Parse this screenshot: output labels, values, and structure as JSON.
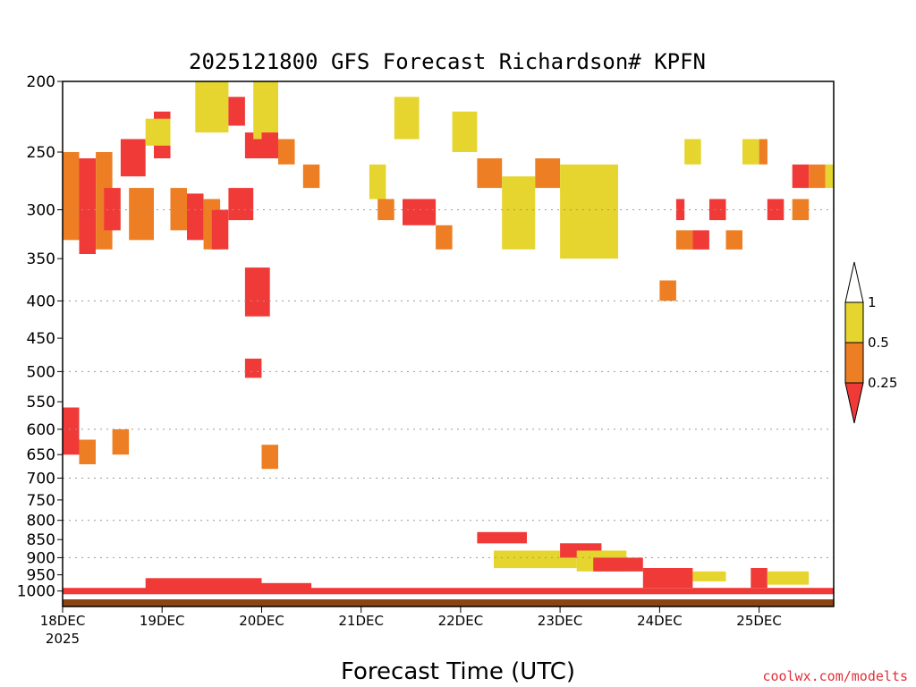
{
  "chart_data": {
    "type": "heatmap",
    "title": "2025121800 GFS Forecast Richardson# KPFN",
    "xlabel": "Forecast Time (UTC)",
    "ylabel": "",
    "credit": "coolwx.com/modelts",
    "x_ticks": [
      "18DEC",
      "19DEC",
      "20DEC",
      "21DEC",
      "22DEC",
      "23DEC",
      "24DEC",
      "25DEC"
    ],
    "x_year": "2025",
    "x_range_hours": [
      0,
      186
    ],
    "y_ticks": [
      200,
      250,
      300,
      350,
      400,
      450,
      500,
      550,
      600,
      650,
      700,
      750,
      800,
      850,
      900,
      950,
      1000
    ],
    "y_gridlines": [
      300,
      400,
      500,
      600,
      700,
      800,
      900
    ],
    "y_range": [
      200,
      1050
    ],
    "y_scale": "pressure (hPa), decreasing upward",
    "grid": true,
    "legend": {
      "position": "right",
      "labels": [
        "1",
        "0.5",
        "0.25"
      ],
      "bins": [
        {
          "range": ">1",
          "color": "#ffffff"
        },
        {
          "range": "0.5-1",
          "color": "#e5d52e"
        },
        {
          "range": "0.25-0.5",
          "color": "#ed7e24"
        },
        {
          "range": "<0.25",
          "color": "#f03a38"
        }
      ]
    },
    "colors": {
      "yellow": "#e5d52e",
      "orange": "#ed7e24",
      "red": "#f03a38",
      "ground": "#8b4513"
    },
    "cells_note": "time_h / pressure_hPa extents of shaded regions (approximate)",
    "cells": [
      {
        "t": [
          0,
          4
        ],
        "p": [
          250,
          330
        ],
        "c": "orange"
      },
      {
        "t": [
          4,
          8
        ],
        "p": [
          255,
          345
        ],
        "c": "red"
      },
      {
        "t": [
          8,
          12
        ],
        "p": [
          250,
          340
        ],
        "c": "orange"
      },
      {
        "t": [
          10,
          14
        ],
        "p": [
          280,
          320
        ],
        "c": "red"
      },
      {
        "t": [
          0,
          4
        ],
        "p": [
          560,
          650
        ],
        "c": "red"
      },
      {
        "t": [
          4,
          8
        ],
        "p": [
          620,
          670
        ],
        "c": "orange"
      },
      {
        "t": [
          12,
          16
        ],
        "p": [
          600,
          650
        ],
        "c": "orange"
      },
      {
        "t": [
          14,
          20
        ],
        "p": [
          240,
          270
        ],
        "c": "red"
      },
      {
        "t": [
          16,
          22
        ],
        "p": [
          280,
          330
        ],
        "c": "orange"
      },
      {
        "t": [
          22,
          26
        ],
        "p": [
          220,
          255
        ],
        "c": "red"
      },
      {
        "t": [
          20,
          26
        ],
        "p": [
          225,
          245
        ],
        "c": "yellow"
      },
      {
        "t": [
          26,
          30
        ],
        "p": [
          280,
          320
        ],
        "c": "orange"
      },
      {
        "t": [
          30,
          34
        ],
        "p": [
          285,
          330
        ],
        "c": "red"
      },
      {
        "t": [
          34,
          38
        ],
        "p": [
          290,
          340
        ],
        "c": "orange"
      },
      {
        "t": [
          36,
          40
        ],
        "p": [
          300,
          340
        ],
        "c": "red"
      },
      {
        "t": [
          32,
          40
        ],
        "p": [
          200,
          235
        ],
        "c": "yellow"
      },
      {
        "t": [
          40,
          44
        ],
        "p": [
          210,
          230
        ],
        "c": "red"
      },
      {
        "t": [
          44,
          50
        ],
        "p": [
          235,
          255
        ],
        "c": "red"
      },
      {
        "t": [
          40,
          46
        ],
        "p": [
          280,
          310
        ],
        "c": "red"
      },
      {
        "t": [
          46,
          52
        ],
        "p": [
          200,
          240
        ],
        "c": "yellow"
      },
      {
        "t": [
          48,
          52
        ],
        "p": [
          235,
          255
        ],
        "c": "red"
      },
      {
        "t": [
          52,
          56
        ],
        "p": [
          240,
          260
        ],
        "c": "orange"
      },
      {
        "t": [
          44,
          48
        ],
        "p": [
          480,
          510
        ],
        "c": "red"
      },
      {
        "t": [
          44,
          50
        ],
        "p": [
          360,
          420
        ],
        "c": "red"
      },
      {
        "t": [
          48,
          52
        ],
        "p": [
          630,
          680
        ],
        "c": "orange"
      },
      {
        "t": [
          58,
          62
        ],
        "p": [
          260,
          280
        ],
        "c": "orange"
      },
      {
        "t": [
          74,
          78
        ],
        "p": [
          260,
          290
        ],
        "c": "yellow"
      },
      {
        "t": [
          76,
          80
        ],
        "p": [
          290,
          310
        ],
        "c": "orange"
      },
      {
        "t": [
          80,
          86
        ],
        "p": [
          210,
          240
        ],
        "c": "yellow"
      },
      {
        "t": [
          82,
          90
        ],
        "p": [
          290,
          315
        ],
        "c": "red"
      },
      {
        "t": [
          90,
          94
        ],
        "p": [
          315,
          340
        ],
        "c": "orange"
      },
      {
        "t": [
          94,
          100
        ],
        "p": [
          220,
          250
        ],
        "c": "yellow"
      },
      {
        "t": [
          100,
          106
        ],
        "p": [
          255,
          280
        ],
        "c": "orange"
      },
      {
        "t": [
          106,
          114
        ],
        "p": [
          270,
          340
        ],
        "c": "yellow"
      },
      {
        "t": [
          114,
          120
        ],
        "p": [
          255,
          280
        ],
        "c": "orange"
      },
      {
        "t": [
          120,
          134
        ],
        "p": [
          260,
          350
        ],
        "c": "yellow"
      },
      {
        "t": [
          144,
          148
        ],
        "p": [
          375,
          400
        ],
        "c": "orange"
      },
      {
        "t": [
          148,
          150
        ],
        "p": [
          290,
          310
        ],
        "c": "red"
      },
      {
        "t": [
          156,
          160
        ],
        "p": [
          290,
          310
        ],
        "c": "red"
      },
      {
        "t": [
          150,
          154
        ],
        "p": [
          240,
          260
        ],
        "c": "yellow"
      },
      {
        "t": [
          164,
          168
        ],
        "p": [
          240,
          260
        ],
        "c": "yellow"
      },
      {
        "t": [
          168,
          170
        ],
        "p": [
          240,
          260
        ],
        "c": "orange"
      },
      {
        "t": [
          170,
          174
        ],
        "p": [
          290,
          310
        ],
        "c": "red"
      },
      {
        "t": [
          176,
          180
        ],
        "p": [
          260,
          280
        ],
        "c": "red"
      },
      {
        "t": [
          180,
          184
        ],
        "p": [
          260,
          280
        ],
        "c": "orange"
      },
      {
        "t": [
          184,
          186
        ],
        "p": [
          260,
          280
        ],
        "c": "yellow"
      },
      {
        "t": [
          176,
          180
        ],
        "p": [
          290,
          310
        ],
        "c": "orange"
      },
      {
        "t": [
          148,
          152
        ],
        "p": [
          320,
          340
        ],
        "c": "orange"
      },
      {
        "t": [
          152,
          156
        ],
        "p": [
          320,
          340
        ],
        "c": "red"
      },
      {
        "t": [
          160,
          164
        ],
        "p": [
          320,
          340
        ],
        "c": "orange"
      },
      {
        "t": [
          100,
          112
        ],
        "p": [
          830,
          860
        ],
        "c": "red"
      },
      {
        "t": [
          104,
          124
        ],
        "p": [
          880,
          930
        ],
        "c": "yellow"
      },
      {
        "t": [
          120,
          130
        ],
        "p": [
          860,
          900
        ],
        "c": "red"
      },
      {
        "t": [
          124,
          136
        ],
        "p": [
          880,
          940
        ],
        "c": "yellow"
      },
      {
        "t": [
          128,
          140
        ],
        "p": [
          900,
          940
        ],
        "c": "red"
      },
      {
        "t": [
          140,
          152
        ],
        "p": [
          930,
          990
        ],
        "c": "red"
      },
      {
        "t": [
          152,
          160
        ],
        "p": [
          940,
          970
        ],
        "c": "yellow"
      },
      {
        "t": [
          166,
          170
        ],
        "p": [
          930,
          990
        ],
        "c": "red"
      },
      {
        "t": [
          170,
          180
        ],
        "p": [
          940,
          980
        ],
        "c": "yellow"
      },
      {
        "t": [
          0,
          186
        ],
        "p": [
          990,
          1010
        ],
        "c": "red"
      },
      {
        "t": [
          20,
          48
        ],
        "p": [
          960,
          995
        ],
        "c": "red"
      },
      {
        "t": [
          48,
          60
        ],
        "p": [
          975,
          995
        ],
        "c": "red"
      }
    ]
  }
}
